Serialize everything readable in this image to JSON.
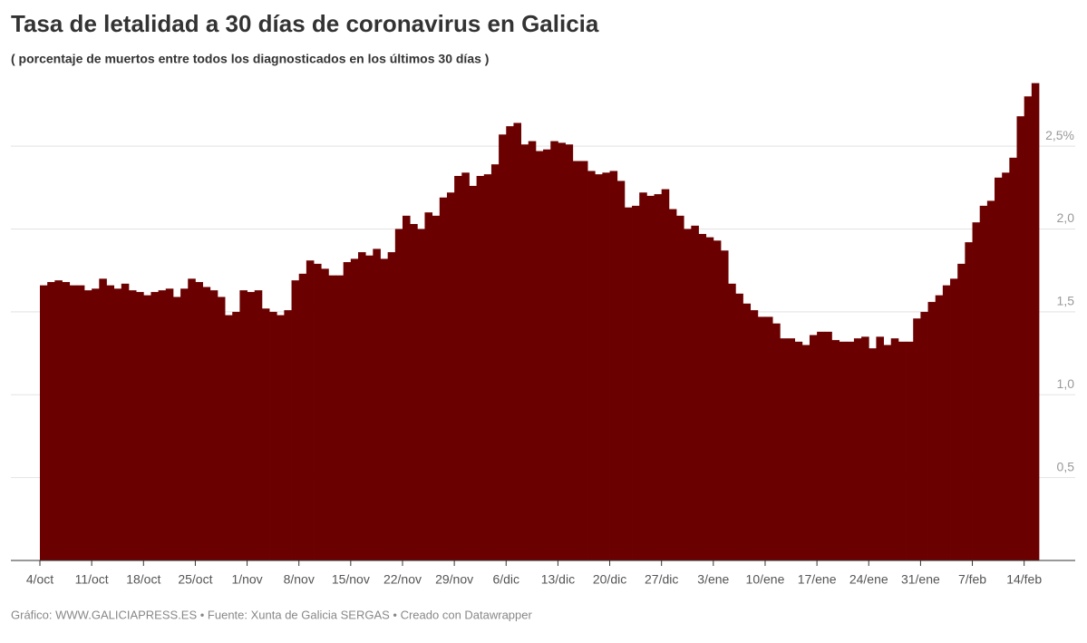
{
  "chart_data": {
    "type": "bar",
    "title": "Tasa de letalidad a 30 días de coronavirus en Galicia",
    "subtitle": "( porcentaje de muertos entre todos los diagnosticados en los últimos 30 días )",
    "source": "Gráfico: WWW.GALICIAPRESS.ES • Fuente: Xunta de Galicia SERGAS • Creado con Datawrapper",
    "color": "#6b0000",
    "grid": true,
    "ylim": [
      0,
      2.9
    ],
    "yticks": [
      {
        "value": 0.5,
        "label": "0,5"
      },
      {
        "value": 1.0,
        "label": "1,0"
      },
      {
        "value": 1.5,
        "label": "1,5"
      },
      {
        "value": 2.0,
        "label": "2,0"
      },
      {
        "value": 2.5,
        "label": "2,5%"
      }
    ],
    "categories": [
      "4/oct",
      null,
      null,
      null,
      null,
      null,
      null,
      "11/oct",
      null,
      null,
      null,
      null,
      null,
      null,
      "18/oct",
      null,
      null,
      null,
      null,
      null,
      null,
      "25/oct",
      null,
      null,
      null,
      null,
      null,
      null,
      "1/nov",
      null,
      null,
      null,
      null,
      null,
      null,
      "8/nov",
      null,
      null,
      null,
      null,
      null,
      null,
      "15/nov",
      null,
      null,
      null,
      null,
      null,
      null,
      "22/nov",
      null,
      null,
      null,
      null,
      null,
      null,
      "29/nov",
      null,
      null,
      null,
      null,
      null,
      null,
      "6/dic",
      null,
      null,
      null,
      null,
      null,
      null,
      "13/dic",
      null,
      null,
      null,
      null,
      null,
      null,
      "20/dic",
      null,
      null,
      null,
      null,
      null,
      null,
      "27/dic",
      null,
      null,
      null,
      null,
      null,
      null,
      "3/ene",
      null,
      null,
      null,
      null,
      null,
      null,
      "10/ene",
      null,
      null,
      null,
      null,
      null,
      null,
      "17/ene",
      null,
      null,
      null,
      null,
      null,
      null,
      "24/ene",
      null,
      null,
      null,
      null,
      null,
      null,
      "31/ene",
      null,
      null,
      null,
      null,
      null,
      null,
      "7/feb",
      null,
      null,
      null,
      null,
      null,
      null,
      "14/feb",
      null
    ],
    "values": [
      1.66,
      1.68,
      1.69,
      1.68,
      1.66,
      1.66,
      1.63,
      1.64,
      1.7,
      1.66,
      1.64,
      1.67,
      1.63,
      1.62,
      1.6,
      1.62,
      1.63,
      1.64,
      1.59,
      1.64,
      1.7,
      1.68,
      1.65,
      1.63,
      1.59,
      1.48,
      1.5,
      1.63,
      1.62,
      1.63,
      1.52,
      1.5,
      1.48,
      1.51,
      1.69,
      1.73,
      1.81,
      1.79,
      1.76,
      1.72,
      1.72,
      1.8,
      1.82,
      1.86,
      1.84,
      1.88,
      1.82,
      1.86,
      2.0,
      2.08,
      2.03,
      2.0,
      2.1,
      2.08,
      2.19,
      2.22,
      2.32,
      2.34,
      2.26,
      2.32,
      2.33,
      2.39,
      2.57,
      2.62,
      2.64,
      2.51,
      2.53,
      2.47,
      2.48,
      2.53,
      2.52,
      2.51,
      2.41,
      2.41,
      2.35,
      2.33,
      2.34,
      2.35,
      2.29,
      2.13,
      2.14,
      2.22,
      2.2,
      2.21,
      2.24,
      2.12,
      2.08,
      2.0,
      2.02,
      1.97,
      1.95,
      1.93,
      1.87,
      1.67,
      1.61,
      1.55,
      1.51,
      1.47,
      1.47,
      1.43,
      1.34,
      1.34,
      1.32,
      1.3,
      1.36,
      1.38,
      1.38,
      1.33,
      1.32,
      1.32,
      1.34,
      1.35,
      1.28,
      1.35,
      1.3,
      1.34,
      1.32,
      1.32,
      1.46,
      1.5,
      1.56,
      1.6,
      1.66,
      1.7,
      1.79,
      1.92,
      2.04,
      2.14,
      2.17,
      2.31,
      2.34,
      2.43,
      2.68,
      2.8,
      2.88
    ]
  }
}
